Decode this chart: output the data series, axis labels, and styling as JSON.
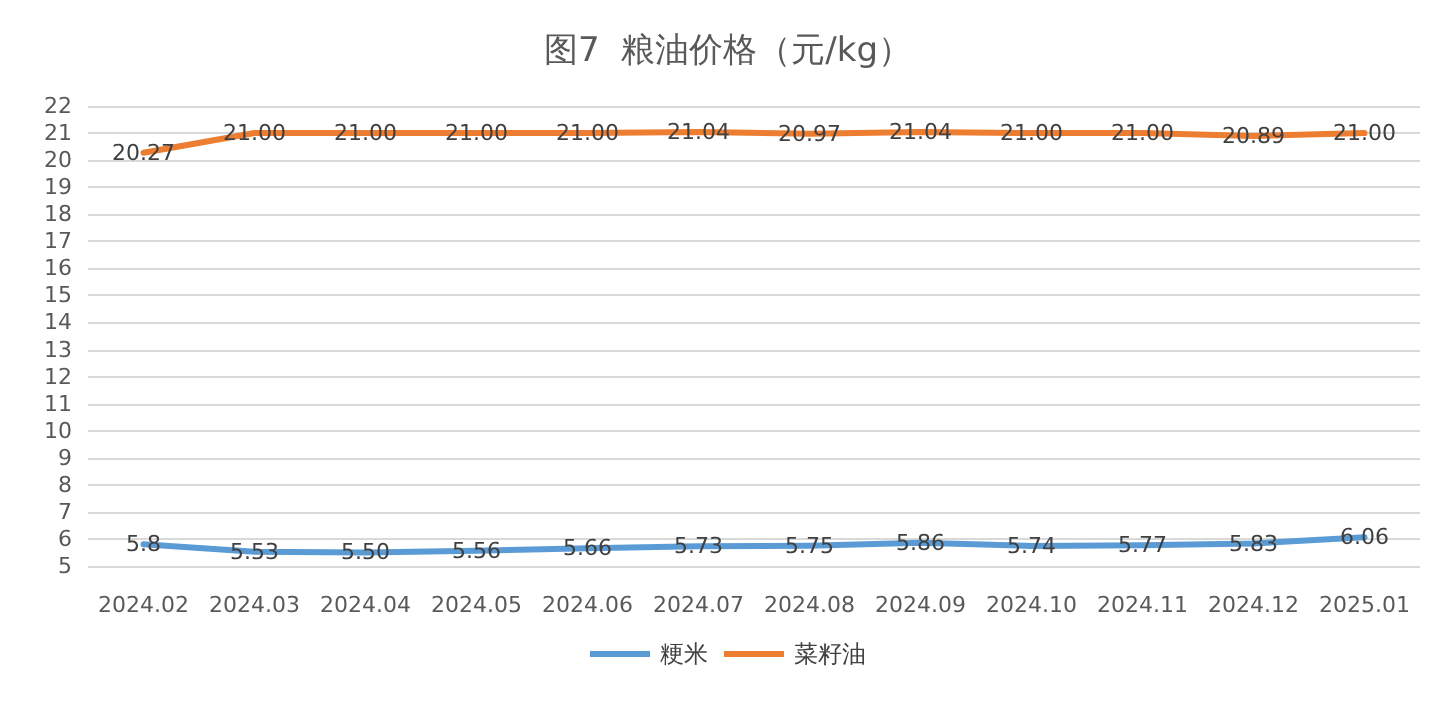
{
  "chart_data": {
    "type": "line",
    "title": "图7  粮油价格（元/kg）",
    "categories": [
      "2024.02",
      "2024.03",
      "2024.04",
      "2024.05",
      "2024.06",
      "2024.07",
      "2024.08",
      "2024.09",
      "2024.10",
      "2024.11",
      "2024.12",
      "2025.01"
    ],
    "series": [
      {
        "name": "粳米",
        "color": "#5b9bd5",
        "values": [
          5.8,
          5.53,
          5.5,
          5.56,
          5.66,
          5.73,
          5.75,
          5.86,
          5.74,
          5.77,
          5.83,
          6.06
        ],
        "value_labels": [
          "5.8",
          "5.53",
          "5.50",
          "5.56",
          "5.66",
          "5.73",
          "5.75",
          "5.86",
          "5.74",
          "5.77",
          "5.83",
          "6.06"
        ]
      },
      {
        "name": "菜籽油",
        "color": "#ed7d31",
        "values": [
          20.27,
          21.0,
          21.0,
          21.0,
          21.0,
          21.04,
          20.97,
          21.04,
          21.0,
          21.0,
          20.89,
          21.0
        ],
        "value_labels": [
          "20.27",
          "21.00",
          "21.00",
          "21.00",
          "21.00",
          "21.04",
          "20.97",
          "21.04",
          "21.00",
          "21.00",
          "20.89",
          "21.00"
        ]
      }
    ],
    "ylim": [
      5,
      22
    ],
    "yticks": [
      5,
      6,
      7,
      8,
      9,
      10,
      11,
      12,
      13,
      14,
      15,
      16,
      17,
      18,
      19,
      20,
      21,
      22
    ],
    "grid": "y",
    "legend": "bottom",
    "marker": "none",
    "line_style": "solid"
  }
}
